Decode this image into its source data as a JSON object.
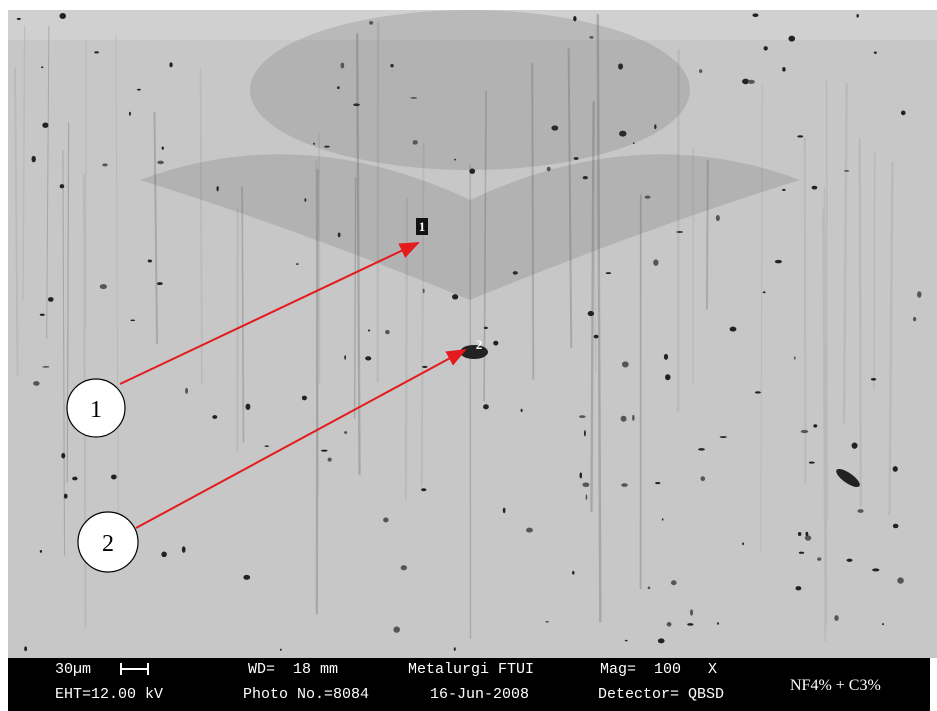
{
  "image": {
    "point_labels": [
      "1",
      "2"
    ]
  },
  "callouts": [
    {
      "label": "1"
    },
    {
      "label": "2"
    }
  ],
  "info_bar": {
    "row1": [
      "30µm",
      "WD=  18 mm",
      "Metalurgi FTUI",
      "Mag=  100   X"
    ],
    "row2": [
      "EHT=12.00 kV",
      "Photo No.=8084",
      "16-Jun-2008",
      "Detector= QBSD"
    ],
    "note": "NF4% + C3%"
  }
}
